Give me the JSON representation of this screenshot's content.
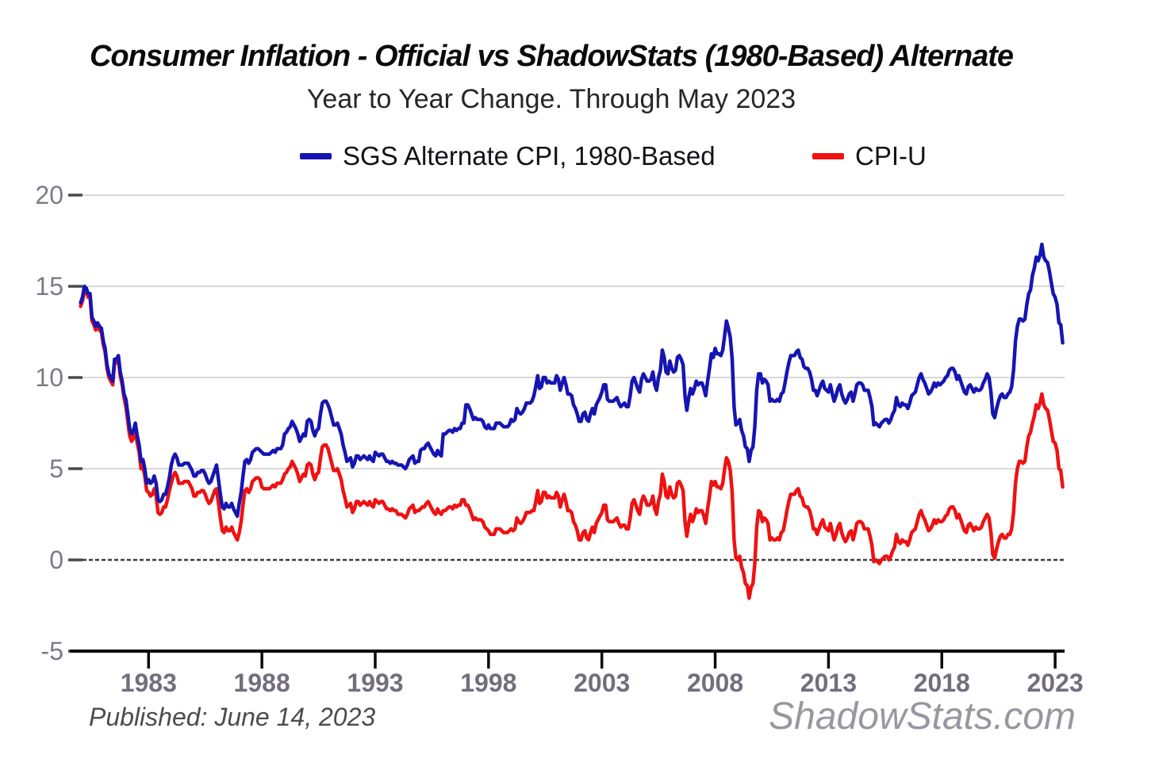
{
  "header": {
    "title": "Consumer Inflation - Official vs ShadowStats (1980-Based) Alternate",
    "subtitle": "Year to Year Change. Through May 2023"
  },
  "legend": {
    "sgs": {
      "label": "SGS Alternate CPI, 1980-Based",
      "color": "#1615b2"
    },
    "cpiu": {
      "label": "CPI-U",
      "color": "#ee1212"
    }
  },
  "footer": {
    "published": "Published: June 14, 2023",
    "watermark": "ShadowStats.com"
  },
  "style": {
    "background": "#ffffff",
    "grid_color": "#cccccc",
    "tick_stub_color": "#4a4a4a",
    "zero_line_color": "#3d3d3d",
    "axis_color": "#0a0a0a",
    "ytick_color": "#7b7b87",
    "xtick_color": "#746e7c",
    "line_width": 4.5
  },
  "chart_data": {
    "type": "line",
    "title": "Consumer Inflation - Official vs ShadowStats (1980-Based) Alternate",
    "subtitle": "Year to Year Change. Through May 2023",
    "xlabel": "",
    "ylabel": "",
    "ylim": [
      -5,
      20
    ],
    "yticks": [
      20,
      15,
      10,
      5,
      0,
      -5
    ],
    "xticks": [
      1983,
      1988,
      1993,
      1998,
      2003,
      2008,
      2013,
      2018,
      2023
    ],
    "grid": "horizontal",
    "zero_line": "dark-dashed",
    "legend_position": "top",
    "x_start_year": 1980,
    "x_start_month": 1,
    "frequency": "monthly",
    "x_end_label": "May 2023",
    "series": [
      {
        "name": "SGS Alternate CPI, 1980-Based",
        "color": "#1615b2",
        "values": [
          14.1,
          14.4,
          15.0,
          14.9,
          14.6,
          14.6,
          13.3,
          13.1,
          12.8,
          13.0,
          12.8,
          12.7,
          12.0,
          11.6,
          10.7,
          10.2,
          10.0,
          9.8,
          11.0,
          11.0,
          11.2,
          10.3,
          9.8,
          9.1,
          8.8,
          8.0,
          7.2,
          6.9,
          7.1,
          7.5,
          6.8,
          6.3,
          5.4,
          5.5,
          5.0,
          4.2,
          4.4,
          4.2,
          4.3,
          4.6,
          4.2,
          3.3,
          3.2,
          3.3,
          3.6,
          3.6,
          4.0,
          4.5,
          5.2,
          5.6,
          5.8,
          5.6,
          5.2,
          5.2,
          5.2,
          5.3,
          5.3,
          5.3,
          5.1,
          4.9,
          4.6,
          4.6,
          4.8,
          4.8,
          4.9,
          4.9,
          4.7,
          4.4,
          4.2,
          4.3,
          4.6,
          4.9,
          5.2,
          4.4,
          3.6,
          2.9,
          2.8,
          3.1,
          2.9,
          2.9,
          3.1,
          2.8,
          2.6,
          2.4,
          3.1,
          3.7,
          4.6,
          5.4,
          5.5,
          5.3,
          5.5,
          5.9,
          6.0,
          6.1,
          6.1,
          6.0,
          5.9,
          5.8,
          5.8,
          5.8,
          5.8,
          5.9,
          6.0,
          5.9,
          6.1,
          6.1,
          6.1,
          6.3,
          6.9,
          7.0,
          7.2,
          7.3,
          7.6,
          7.4,
          7.2,
          6.9,
          6.5,
          6.7,
          6.9,
          6.8,
          7.6,
          7.7,
          7.6,
          7.1,
          6.8,
          7.1,
          7.2,
          8.0,
          8.6,
          8.7,
          8.7,
          8.5,
          8.2,
          7.8,
          7.4,
          7.4,
          7.5,
          7.2,
          6.9,
          6.3,
          5.9,
          5.4,
          5.5,
          5.6,
          5.1,
          5.3,
          5.7,
          5.7,
          5.5,
          5.6,
          5.7,
          5.6,
          5.5,
          5.7,
          5.5,
          5.4,
          5.9,
          5.8,
          5.7,
          5.8,
          5.8,
          5.6,
          5.4,
          5.4,
          5.3,
          5.4,
          5.3,
          5.3,
          5.2,
          5.2,
          5.2,
          5.1,
          5.0,
          5.2,
          5.5,
          5.6,
          5.7,
          5.3,
          5.4,
          5.4,
          6.0,
          6.1,
          6.1,
          6.3,
          6.4,
          6.2,
          6.0,
          5.8,
          5.7,
          6.0,
          5.8,
          5.7,
          6.9,
          6.9,
          7.0,
          7.1,
          7.1,
          7.0,
          7.2,
          7.1,
          7.2,
          7.2,
          7.5,
          7.5,
          8.5,
          8.5,
          8.3,
          8.0,
          7.7,
          7.8,
          7.7,
          7.7,
          7.7,
          7.6,
          7.3,
          7.2,
          7.4,
          7.2,
          7.2,
          7.2,
          7.5,
          7.5,
          7.5,
          7.4,
          7.3,
          7.3,
          7.3,
          7.4,
          7.7,
          7.6,
          7.7,
          8.3,
          8.1,
          8.0,
          8.1,
          8.3,
          8.6,
          8.6,
          8.6,
          8.7,
          9.0,
          9.5,
          10.1,
          9.4,
          9.5,
          10.0,
          10.0,
          9.7,
          9.8,
          9.7,
          9.7,
          9.7,
          10.1,
          9.9,
          9.3,
          9.7,
          10.0,
          9.6,
          9.1,
          9.1,
          9.0,
          8.5,
          8.3,
          8.0,
          7.6,
          7.6,
          8.0,
          8.1,
          7.7,
          7.6,
          8.0,
          8.3,
          8.0,
          8.5,
          8.7,
          8.9,
          9.2,
          9.6,
          9.6,
          8.8,
          8.7,
          8.7,
          8.7,
          8.8,
          8.9,
          8.6,
          8.4,
          8.5,
          8.6,
          8.4,
          8.4,
          9.0,
          9.8,
          10.0,
          9.7,
          9.4,
          9.2,
          9.9,
          10.2,
          10.0,
          9.8,
          9.8,
          9.9,
          10.3,
          9.6,
          9.3,
          10.0,
          10.4,
          11.5,
          11.1,
          10.3,
          10.2,
          10.9,
          10.5,
          10.3,
          10.4,
          11.1,
          11.2,
          11.0,
          10.7,
          9.0,
          8.2,
          8.9,
          9.4,
          9.1,
          9.4,
          9.8,
          9.6,
          9.7,
          9.7,
          9.4,
          9.0,
          9.8,
          10.5,
          11.3,
          11.1,
          11.6,
          11.3,
          11.3,
          11.2,
          11.5,
          12.3,
          13.1,
          12.7,
          12.2,
          11.0,
          8.4,
          7.4,
          7.5,
          7.7,
          7.1,
          6.8,
          6.2,
          6.1,
          5.4,
          6.0,
          6.2,
          7.3,
          9.3,
          10.2,
          10.2,
          9.7,
          9.9,
          9.8,
          9.6,
          8.7,
          8.8,
          8.7,
          8.7,
          8.8,
          8.7,
          9.1,
          9.2,
          9.7,
          10.3,
          10.8,
          11.2,
          11.2,
          11.2,
          11.4,
          11.5,
          11.1,
          11.0,
          10.6,
          10.5,
          10.5,
          10.3,
          9.9,
          9.3,
          9.3,
          9.0,
          9.3,
          9.6,
          9.8,
          9.4,
          9.3,
          9.2,
          9.6,
          9.1,
          8.7,
          9.0,
          9.4,
          9.6,
          9.1,
          8.8,
          8.6,
          8.8,
          9.1,
          9.2,
          8.7,
          9.1,
          9.6,
          9.7,
          9.7,
          9.6,
          9.3,
          9.3,
          9.3,
          8.9,
          8.4,
          7.4,
          7.5,
          7.4,
          7.3,
          7.5,
          7.6,
          7.7,
          7.7,
          7.5,
          7.7,
          8.0,
          8.2,
          8.9,
          8.5,
          8.4,
          8.6,
          8.5,
          8.5,
          8.3,
          8.6,
          9.0,
          9.1,
          9.2,
          9.6,
          10.0,
          10.2,
          9.9,
          9.7,
          9.4,
          9.1,
          9.2,
          9.4,
          9.7,
          9.5,
          9.7,
          9.6,
          9.7,
          9.8,
          10.0,
          10.1,
          10.4,
          10.5,
          10.5,
          10.3,
          9.9,
          10.1,
          9.8,
          9.5,
          9.2,
          9.1,
          9.5,
          9.6,
          9.4,
          9.2,
          9.4,
          9.3,
          9.3,
          9.4,
          9.7,
          9.9,
          10.2,
          10.0,
          9.2,
          8.0,
          7.8,
          8.3,
          8.7,
          9.0,
          9.1,
          8.9,
          8.9,
          9.1,
          9.2,
          9.5,
          10.4,
          12.0,
          12.8,
          13.2,
          13.2,
          13.1,
          13.2,
          14.0,
          14.6,
          14.8,
          15.6,
          16.0,
          16.6,
          16.4,
          16.7,
          17.3,
          16.6,
          16.4,
          16.3,
          15.8,
          15.2,
          14.6,
          14.4,
          14.0,
          13.0,
          12.9,
          11.9
        ]
      },
      {
        "name": "CPI-U",
        "color": "#ee1212",
        "values": [
          13.9,
          14.2,
          14.8,
          14.7,
          14.4,
          14.4,
          13.1,
          12.9,
          12.6,
          12.8,
          12.6,
          12.5,
          11.8,
          11.4,
          10.5,
          10.0,
          9.8,
          9.6,
          10.8,
          10.8,
          11.0,
          10.1,
          9.6,
          8.9,
          8.4,
          7.6,
          6.8,
          6.5,
          6.7,
          7.1,
          6.4,
          5.9,
          5.0,
          5.1,
          4.6,
          3.8,
          3.7,
          3.5,
          3.6,
          3.9,
          3.5,
          2.6,
          2.5,
          2.6,
          2.9,
          2.9,
          3.3,
          3.8,
          4.2,
          4.6,
          4.8,
          4.6,
          4.2,
          4.2,
          4.2,
          4.3,
          4.3,
          4.3,
          4.1,
          3.9,
          3.5,
          3.5,
          3.7,
          3.7,
          3.8,
          3.8,
          3.6,
          3.3,
          3.1,
          3.2,
          3.5,
          3.8,
          3.9,
          3.1,
          2.3,
          1.6,
          1.5,
          1.8,
          1.6,
          1.6,
          1.8,
          1.5,
          1.3,
          1.1,
          1.5,
          2.1,
          3.0,
          3.8,
          3.9,
          3.7,
          3.9,
          4.3,
          4.4,
          4.5,
          4.5,
          4.4,
          4.0,
          3.9,
          3.9,
          3.9,
          3.9,
          4.0,
          4.1,
          4.0,
          4.2,
          4.2,
          4.2,
          4.4,
          4.7,
          4.8,
          5.0,
          5.1,
          5.4,
          5.2,
          5.0,
          4.7,
          4.3,
          4.5,
          4.7,
          4.6,
          5.2,
          5.3,
          5.2,
          4.7,
          4.4,
          4.7,
          4.8,
          5.6,
          6.2,
          6.3,
          6.3,
          6.1,
          5.7,
          5.3,
          4.9,
          4.9,
          5.0,
          4.7,
          4.4,
          3.8,
          3.4,
          2.9,
          3.0,
          3.1,
          2.6,
          2.8,
          3.2,
          3.2,
          3.0,
          3.1,
          3.2,
          3.1,
          3.0,
          3.2,
          3.0,
          2.9,
          3.3,
          3.2,
          3.1,
          3.2,
          3.2,
          3.0,
          2.8,
          2.8,
          2.7,
          2.8,
          2.7,
          2.7,
          2.5,
          2.5,
          2.5,
          2.4,
          2.3,
          2.5,
          2.8,
          2.9,
          3.0,
          2.6,
          2.7,
          2.7,
          2.8,
          2.9,
          2.9,
          3.1,
          3.2,
          3.0,
          2.8,
          2.6,
          2.5,
          2.8,
          2.6,
          2.5,
          2.7,
          2.7,
          2.8,
          2.9,
          2.9,
          2.8,
          3.0,
          2.9,
          3.0,
          3.0,
          3.3,
          3.3,
          3.0,
          3.0,
          2.8,
          2.5,
          2.2,
          2.3,
          2.2,
          2.2,
          2.2,
          2.1,
          1.8,
          1.7,
          1.6,
          1.4,
          1.4,
          1.4,
          1.7,
          1.7,
          1.7,
          1.6,
          1.5,
          1.5,
          1.5,
          1.6,
          1.7,
          1.6,
          1.7,
          2.3,
          2.1,
          2.0,
          2.1,
          2.3,
          2.6,
          2.6,
          2.6,
          2.7,
          2.7,
          3.2,
          3.8,
          3.1,
          3.2,
          3.7,
          3.7,
          3.4,
          3.5,
          3.4,
          3.4,
          3.4,
          3.7,
          3.5,
          2.9,
          3.3,
          3.6,
          3.2,
          2.7,
          2.7,
          2.6,
          2.1,
          1.9,
          1.6,
          1.1,
          1.1,
          1.5,
          1.6,
          1.2,
          1.1,
          1.5,
          1.8,
          1.5,
          2.0,
          2.2,
          2.4,
          2.6,
          3.0,
          3.0,
          2.2,
          2.1,
          2.1,
          2.1,
          2.2,
          2.3,
          2.0,
          1.8,
          1.9,
          1.9,
          1.7,
          1.7,
          2.3,
          3.1,
          3.3,
          3.0,
          2.7,
          2.5,
          3.2,
          3.5,
          3.3,
          3.0,
          3.0,
          3.1,
          3.5,
          2.8,
          2.5,
          3.2,
          3.6,
          4.7,
          4.3,
          3.5,
          3.4,
          4.0,
          3.6,
          3.4,
          3.5,
          4.2,
          4.3,
          4.1,
          3.8,
          2.1,
          1.3,
          2.0,
          2.5,
          2.1,
          2.4,
          2.8,
          2.6,
          2.7,
          2.7,
          2.4,
          2.0,
          2.8,
          3.5,
          4.3,
          4.1,
          4.3,
          4.0,
          4.0,
          3.9,
          4.2,
          5.0,
          5.6,
          5.4,
          4.9,
          3.7,
          1.1,
          0.1,
          0.0,
          0.2,
          -0.4,
          -0.7,
          -1.3,
          -1.4,
          -2.1,
          -1.5,
          -1.3,
          -0.2,
          1.8,
          2.7,
          2.6,
          2.1,
          2.3,
          2.2,
          2.0,
          1.1,
          1.2,
          1.1,
          1.1,
          1.2,
          1.1,
          1.5,
          1.6,
          2.1,
          2.7,
          3.2,
          3.6,
          3.6,
          3.6,
          3.8,
          3.9,
          3.5,
          3.4,
          3.0,
          2.9,
          2.9,
          2.7,
          2.3,
          1.7,
          1.7,
          1.4,
          1.7,
          2.0,
          2.2,
          1.8,
          1.7,
          1.6,
          2.0,
          1.5,
          1.1,
          1.4,
          1.8,
          2.0,
          1.5,
          1.2,
          1.0,
          1.2,
          1.5,
          1.6,
          1.1,
          1.5,
          2.0,
          2.1,
          2.1,
          2.0,
          1.7,
          1.7,
          1.7,
          1.3,
          0.8,
          -0.1,
          0.0,
          -0.1,
          -0.2,
          0.0,
          0.1,
          0.2,
          0.2,
          0.0,
          0.2,
          0.5,
          0.7,
          1.4,
          1.0,
          0.9,
          1.1,
          1.0,
          1.0,
          0.8,
          1.1,
          1.5,
          1.6,
          1.7,
          2.1,
          2.5,
          2.7,
          2.4,
          2.2,
          1.9,
          1.6,
          1.7,
          1.9,
          2.2,
          2.0,
          2.2,
          2.1,
          2.1,
          2.2,
          2.4,
          2.5,
          2.8,
          2.9,
          2.9,
          2.7,
          2.3,
          2.5,
          2.2,
          1.9,
          1.6,
          1.5,
          1.9,
          2.0,
          1.8,
          1.6,
          1.8,
          1.7,
          1.7,
          1.8,
          2.1,
          2.3,
          2.5,
          2.3,
          1.5,
          0.3,
          0.1,
          0.6,
          1.0,
          1.3,
          1.4,
          1.2,
          1.2,
          1.4,
          1.4,
          1.7,
          2.6,
          4.2,
          5.0,
          5.4,
          5.4,
          5.3,
          5.4,
          6.2,
          6.8,
          7.0,
          7.5,
          7.9,
          8.5,
          8.3,
          8.6,
          9.1,
          8.5,
          8.3,
          8.2,
          7.7,
          7.1,
          6.5,
          6.4,
          6.0,
          5.0,
          4.9,
          4.0
        ]
      }
    ]
  }
}
